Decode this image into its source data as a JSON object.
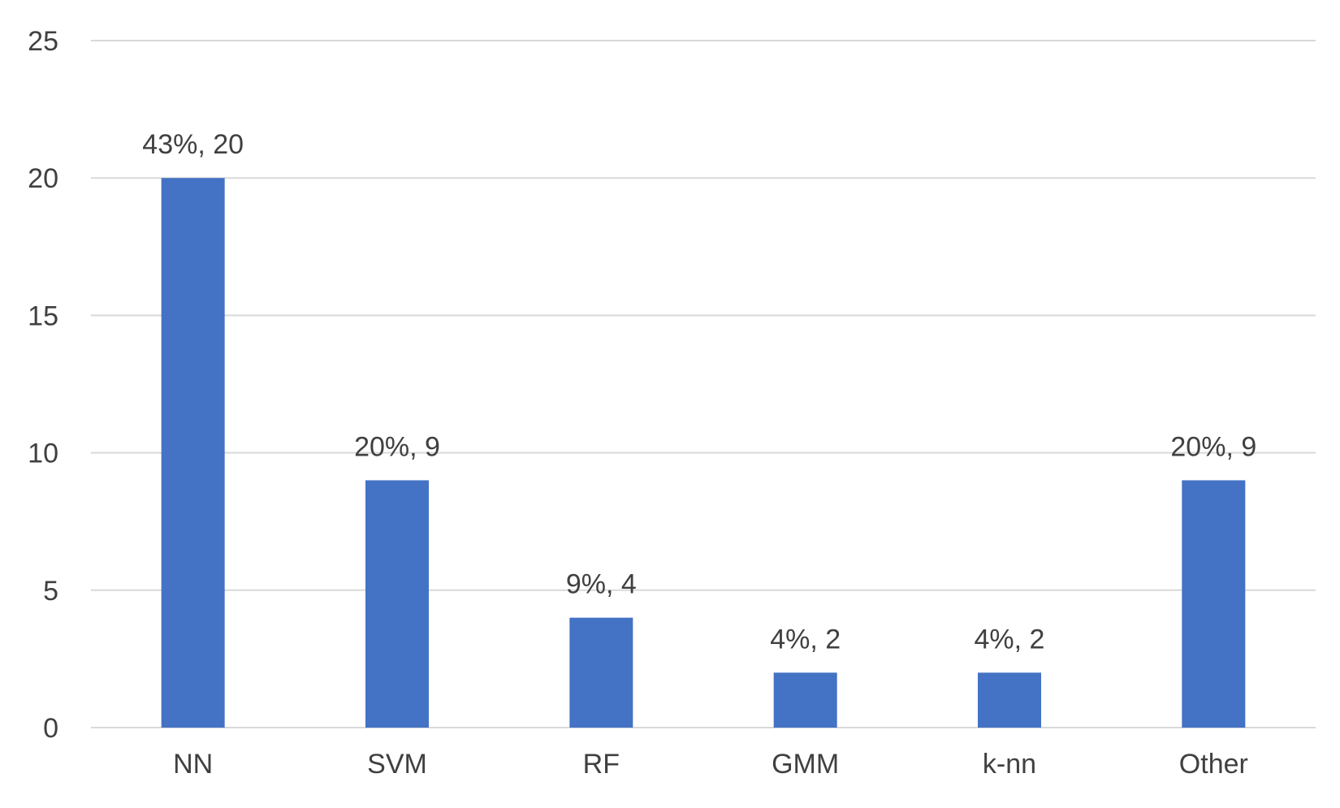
{
  "chart_data": {
    "type": "bar",
    "title": "",
    "xlabel": "",
    "ylabel": "",
    "categories": [
      "NN",
      "SVM",
      "RF",
      "GMM",
      "k-nn",
      "Other"
    ],
    "values": [
      20,
      9,
      4,
      2,
      2,
      9
    ],
    "data_labels": [
      "43%, 20",
      "20%, 9",
      "9%, 4",
      "4%, 2",
      "4%, 2",
      "20%, 9"
    ],
    "ylim": [
      0,
      25
    ],
    "yticks": [
      0,
      5,
      10,
      15,
      20,
      25
    ],
    "grid": true,
    "legend": "none",
    "bar_color": "#4472c4",
    "grid_color": "#d9d9d9",
    "text_color": "#404040"
  }
}
